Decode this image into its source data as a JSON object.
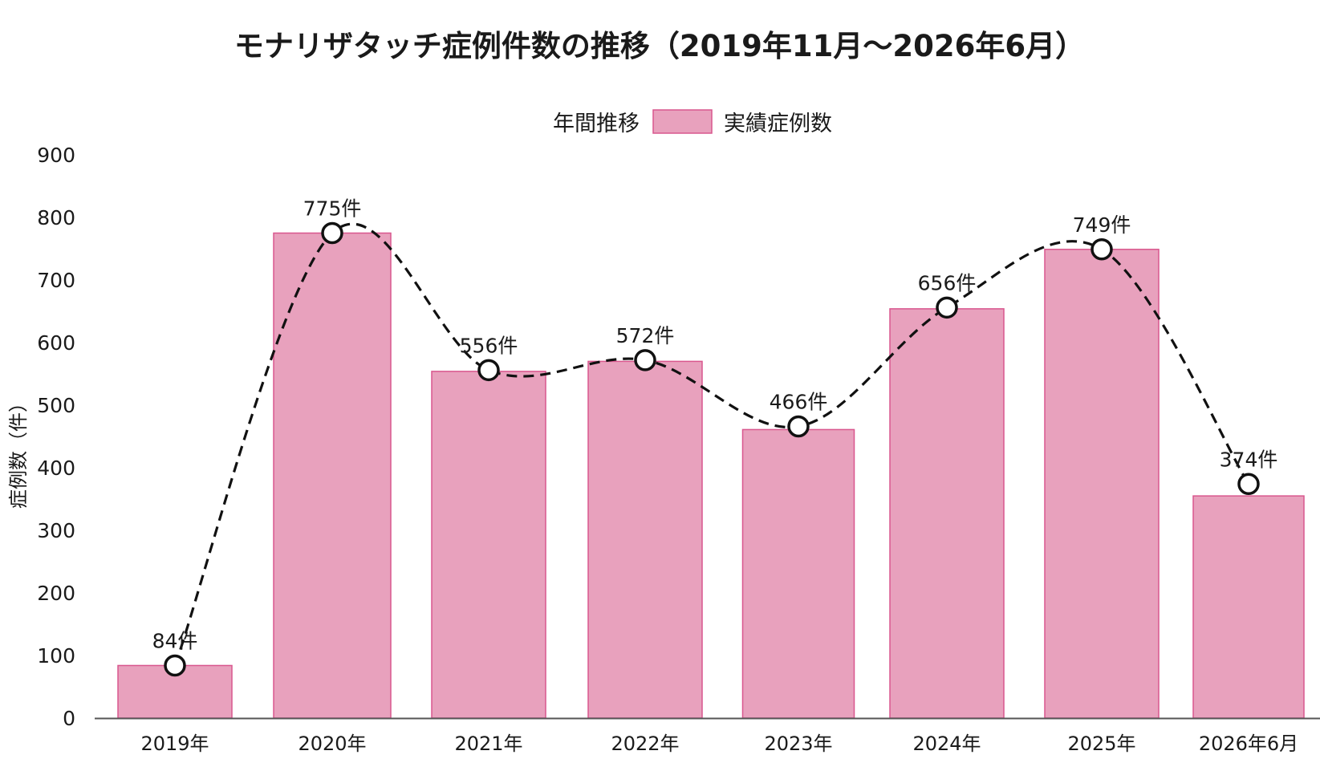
{
  "chart_data": {
    "type": "bar",
    "title": "モナリザタッチ症例件数の推移（2019年11月〜2026年6月）",
    "ylabel": "症例数（件）",
    "xlabel": "",
    "ylim": [
      0,
      900
    ],
    "yticks": [
      0,
      100,
      200,
      300,
      400,
      500,
      600,
      700,
      800,
      900
    ],
    "grid": false,
    "legend_position": "top-center",
    "legend": {
      "line_label": "年間推移",
      "bar_label": "実績症例数"
    },
    "categories": [
      "2019年",
      "2020年",
      "2021年",
      "2022年",
      "2023年",
      "2024年",
      "2025年",
      "2026年6月"
    ],
    "series": [
      {
        "name": "実績症例数",
        "type": "bar",
        "values": [
          84,
          775,
          554,
          570,
          461,
          654,
          749,
          355
        ]
      },
      {
        "name": "年間推移",
        "type": "line",
        "values": [
          84,
          775,
          556,
          572,
          466,
          656,
          749,
          374
        ],
        "labels": [
          "84件",
          "775件",
          "556件",
          "572件",
          "466件",
          "656件",
          "749件",
          "374件"
        ]
      }
    ],
    "colors": {
      "bar_fill": "#e8a1bd",
      "bar_stroke": "#d9578e",
      "line": "#111111"
    }
  }
}
